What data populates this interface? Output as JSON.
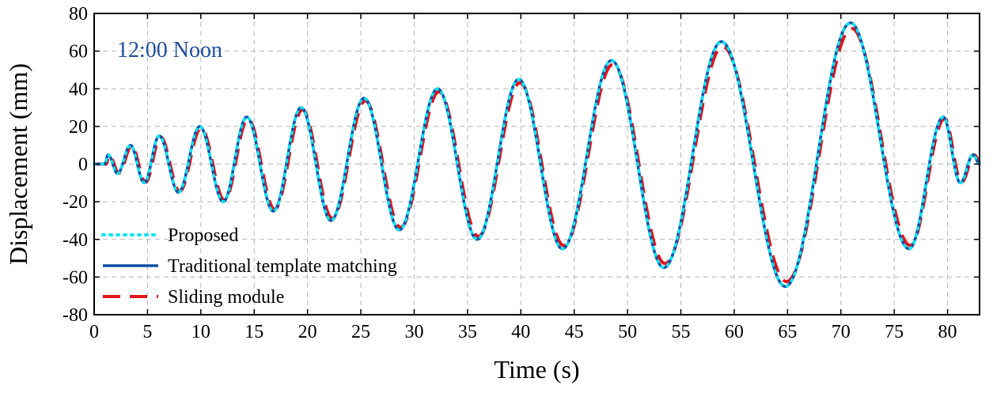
{
  "chart_data": {
    "type": "line",
    "title": "",
    "annotation": "12:00 Noon",
    "xlabel": "Time (s)",
    "ylabel": "Displacement (mm)",
    "xlim": [
      0,
      83
    ],
    "ylim": [
      -80,
      80
    ],
    "xticks": [
      0,
      5,
      10,
      15,
      20,
      25,
      30,
      35,
      40,
      45,
      50,
      55,
      60,
      65,
      70,
      75,
      80
    ],
    "yticks": [
      80,
      60,
      40,
      20,
      0,
      -20,
      -40,
      -60,
      -80
    ],
    "grid": true,
    "legend_position": "bottom-left",
    "extrema": {
      "times": [
        0,
        1,
        1.3,
        2.2,
        3.4,
        4.7,
        6.1,
        7.9,
        9.9,
        12.1,
        14.3,
        16.8,
        19.4,
        22.2,
        25.3,
        28.6,
        32.2,
        35.9,
        39.8,
        43.9,
        48.5,
        53.4,
        58.8,
        64.8,
        70.9,
        76.4,
        79.6,
        81.2,
        82.4,
        83
      ],
      "values": [
        0,
        0,
        5,
        -5,
        10,
        -10,
        15,
        -15,
        20,
        -20,
        25,
        -25,
        30,
        -30,
        35,
        -35,
        40,
        -40,
        45,
        -45,
        55,
        -55,
        65,
        -65,
        75,
        -45,
        25,
        -10,
        5,
        0
      ]
    },
    "series": [
      {
        "name": "Proposed",
        "color": "#00e5f0",
        "style": "dotted",
        "scale": 1.0,
        "shift": 0.0
      },
      {
        "name": "Traditional template matching",
        "color": "#0f4fa8",
        "style": "solid",
        "scale": 1.0,
        "shift": 0.0
      },
      {
        "name": "Sliding module",
        "color": "#e3141b",
        "style": "dashed",
        "scale": 0.96,
        "shift": 0.12
      }
    ]
  }
}
